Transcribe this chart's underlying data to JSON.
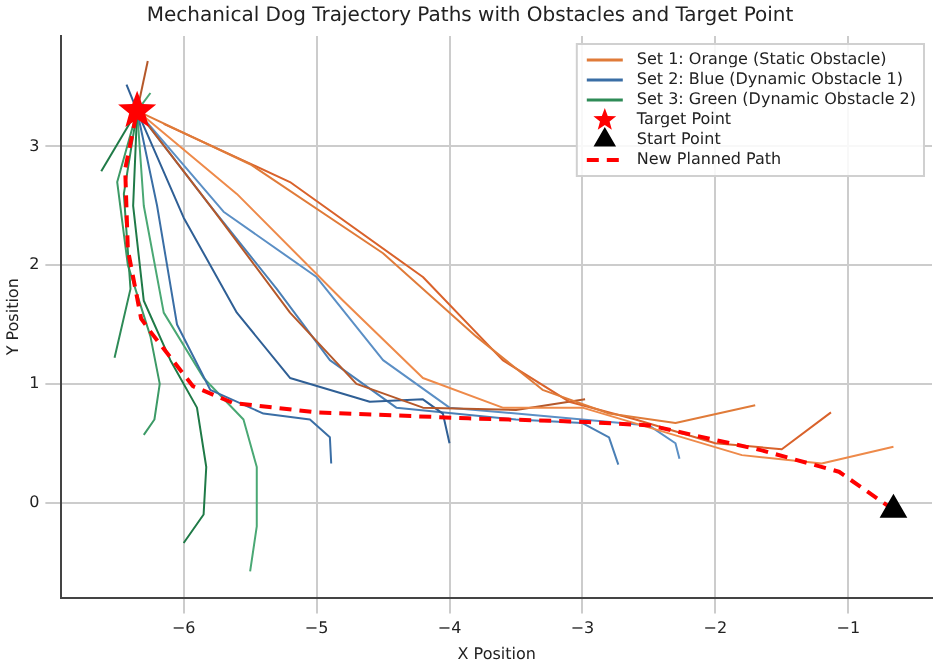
{
  "chart_data": {
    "type": "line",
    "title": "Mechanical Dog Trajectory Paths with Obstacles and Target Point",
    "xlabel": "X Position",
    "ylabel": "Y Position",
    "xlim": [
      -6.92,
      -0.37
    ],
    "ylim": [
      -0.8,
      3.93
    ],
    "xticks": [
      -6,
      -5,
      -4,
      -3,
      -2,
      -1
    ],
    "yticks": [
      0,
      1,
      2,
      3
    ],
    "grid": true,
    "legend": "top right",
    "marker": "none",
    "series": [
      {
        "name": "Set 1: Orange (Static Obstacle)",
        "type": "line",
        "color": "#e07b39",
        "x": [
          -6.35,
          -5.5,
          -4.5,
          -3.8,
          -3.3,
          -2.8,
          -2.3,
          -1.7
        ],
        "values": [
          3.3,
          2.85,
          2.1,
          1.4,
          0.95,
          0.75,
          0.67,
          0.82
        ]
      },
      {
        "type": "line",
        "color": "#d9622b",
        "x": [
          -6.15,
          -5.2,
          -4.2,
          -3.6,
          -3.1,
          -2.6,
          -2.0,
          -1.5,
          -1.13
        ],
        "values": [
          3.19,
          2.7,
          1.9,
          1.2,
          0.85,
          0.7,
          0.5,
          0.45,
          0.76
        ]
      },
      {
        "type": "line",
        "color": "#ee8a4a",
        "x": [
          -6.35,
          -5.6,
          -4.8,
          -4.2,
          -3.6,
          -3.0,
          -2.4,
          -1.8,
          -1.2,
          -0.66
        ],
        "values": [
          3.3,
          2.6,
          1.7,
          1.05,
          0.8,
          0.8,
          0.6,
          0.4,
          0.33,
          0.47
        ]
      },
      {
        "type": "line",
        "color": "#b5582a",
        "x": [
          -6.35,
          -5.8,
          -5.2,
          -4.7,
          -4.2,
          -3.5,
          -2.98
        ],
        "values": [
          3.3,
          2.5,
          1.6,
          1.0,
          0.8,
          0.78,
          0.87
        ]
      },
      {
        "type": "line",
        "color": "#b5582a",
        "x": [
          -6.35,
          -6.27
        ],
        "values": [
          3.3,
          3.72
        ]
      },
      {
        "name": "Set 2: Blue (Dynamic Obstacle 1)",
        "type": "line",
        "color": "#3a6ea5",
        "x": [
          -6.35,
          -6.2,
          -6.05,
          -5.8,
          -5.4,
          -5.05,
          -4.9,
          -4.89
        ],
        "values": [
          3.3,
          2.5,
          1.5,
          0.95,
          0.75,
          0.7,
          0.55,
          0.33
        ]
      },
      {
        "type": "line",
        "color": "#2f5f95",
        "x": [
          -6.35,
          -6.0,
          -5.6,
          -5.2,
          -4.6,
          -4.2,
          -4.05,
          -4.0
        ],
        "values": [
          3.3,
          2.4,
          1.6,
          1.05,
          0.85,
          0.87,
          0.75,
          0.5
        ]
      },
      {
        "type": "line",
        "color": "#4a7fb5",
        "x": [
          -6.35,
          -5.8,
          -5.3,
          -4.9,
          -4.4,
          -3.5,
          -3.0,
          -2.8,
          -2.73
        ],
        "values": [
          3.3,
          2.5,
          1.8,
          1.2,
          0.8,
          0.7,
          0.67,
          0.55,
          0.32
        ]
      },
      {
        "type": "line",
        "color": "#5b8fc5",
        "x": [
          -6.35,
          -5.7,
          -5.0,
          -4.5,
          -4.0,
          -3.0,
          -2.5,
          -2.3,
          -2.27
        ],
        "values": [
          3.3,
          2.45,
          1.9,
          1.2,
          0.8,
          0.7,
          0.65,
          0.5,
          0.37
        ]
      },
      {
        "type": "line",
        "color": "#2f5f95",
        "x": [
          -6.35,
          -6.43
        ],
        "values": [
          3.3,
          3.52
        ]
      },
      {
        "name": "Set 3: Green (Dynamic Obstacle 2)",
        "type": "line",
        "color": "#2e8b57",
        "x": [
          -6.35,
          -6.45,
          -6.4,
          -6.52
        ],
        "values": [
          3.3,
          2.6,
          1.8,
          1.22
        ]
      },
      {
        "type": "line",
        "color": "#3c9a66",
        "x": [
          -6.35,
          -6.5,
          -6.42,
          -6.25,
          -6.18,
          -6.22,
          -6.3
        ],
        "values": [
          3.3,
          2.7,
          2.0,
          1.4,
          1.0,
          0.7,
          0.57
        ]
      },
      {
        "type": "line",
        "color": "#1f7a47",
        "x": [
          -6.35,
          -6.38,
          -6.3,
          -6.1,
          -5.9,
          -5.83,
          -5.85,
          -6.0
        ],
        "values": [
          3.3,
          2.5,
          1.7,
          1.2,
          0.8,
          0.3,
          -0.1,
          -0.34
        ]
      },
      {
        "type": "line",
        "color": "#4aa874",
        "x": [
          -6.35,
          -6.3,
          -6.15,
          -5.85,
          -5.55,
          -5.45,
          -5.45,
          -5.5
        ],
        "values": [
          3.3,
          2.5,
          1.6,
          1.05,
          0.7,
          0.3,
          -0.2,
          -0.58
        ]
      },
      {
        "type": "line",
        "color": "#1f7a47",
        "x": [
          -6.35,
          -6.62
        ],
        "values": [
          3.3,
          2.79
        ]
      },
      {
        "type": "line",
        "color": "#4aa874",
        "x": [
          -6.35,
          -6.25
        ],
        "values": [
          3.3,
          3.45
        ]
      },
      {
        "name": "Target Point",
        "type": "scatter",
        "color": "#ff0000",
        "marker": "star",
        "x": [
          -6.35
        ],
        "values": [
          3.3
        ]
      },
      {
        "name": "Start Point",
        "type": "scatter",
        "color": "#000000",
        "marker": "triangle",
        "x": [
          -0.66
        ],
        "values": [
          -0.06
        ]
      },
      {
        "name": "New Planned Path",
        "type": "line",
        "color": "#ff0000",
        "line_style": "dashed",
        "x": [
          -0.66,
          -1.07,
          -1.65,
          -2.49,
          -2.98,
          -3.86,
          -5.0,
          -5.63,
          -5.93,
          -6.25,
          -6.32,
          -6.42,
          -6.44,
          -6.35
        ],
        "values": [
          -0.06,
          0.26,
          0.44,
          0.65,
          0.68,
          0.71,
          0.76,
          0.84,
          0.98,
          1.44,
          1.55,
          2.13,
          2.81,
          3.3
        ]
      }
    ]
  }
}
